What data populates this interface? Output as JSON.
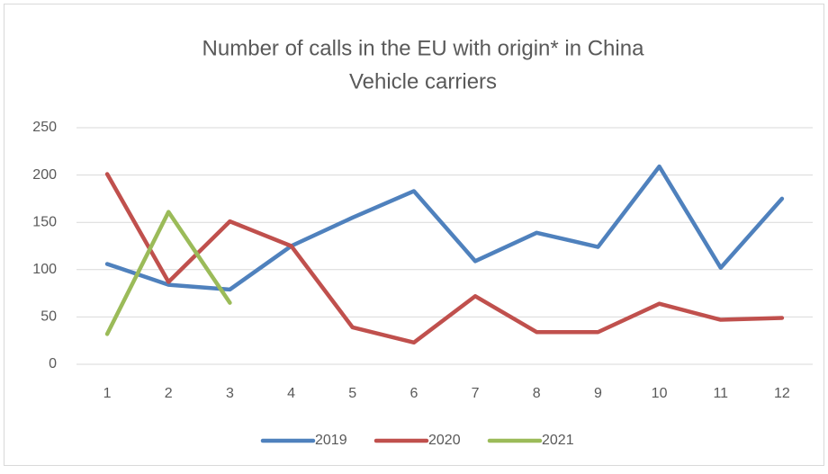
{
  "chart_data": {
    "type": "line",
    "title": "Number of calls in the EU with origin* in China",
    "subtitle": "Vehicle carriers",
    "categories": [
      "1",
      "2",
      "3",
      "4",
      "5",
      "6",
      "7",
      "8",
      "9",
      "10",
      "11",
      "12"
    ],
    "series": [
      {
        "name": "2019",
        "color": "#4f81bd",
        "values": [
          106,
          84,
          79,
          125,
          155,
          183,
          109,
          139,
          124,
          209,
          102,
          175
        ]
      },
      {
        "name": "2020",
        "color": "#c0504d",
        "values": [
          201,
          87,
          151,
          125,
          39,
          23,
          72,
          34,
          34,
          64,
          47,
          49
        ]
      },
      {
        "name": "2021",
        "color": "#9bbb59",
        "values": [
          32,
          161,
          65,
          null,
          null,
          null,
          null,
          null,
          null,
          null,
          null,
          null
        ]
      }
    ],
    "ylim": [
      0,
      250
    ],
    "yticks": [
      0,
      50,
      100,
      150,
      200,
      250
    ],
    "grid": true,
    "legend": "bottom"
  }
}
